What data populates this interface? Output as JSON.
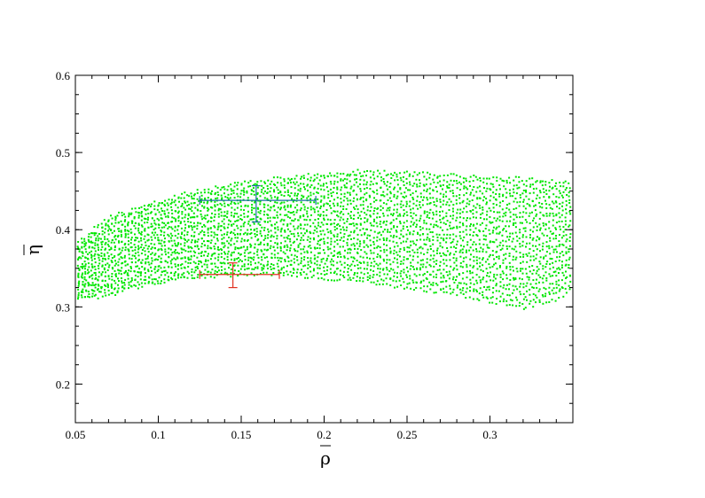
{
  "chart_data": {
    "type": "scatter",
    "title": "",
    "xlabel": "ρ",
    "ylabel": "η",
    "xlabel_overbar": true,
    "ylabel_overbar": true,
    "xlim": [
      0.05,
      0.35
    ],
    "ylim": [
      0.15,
      0.6
    ],
    "xticks": [
      0.05,
      0.1,
      0.15,
      0.2,
      0.25,
      0.3
    ],
    "xtick_labels": [
      "0.05",
      "0.1",
      "0.15",
      "0.2",
      "0.25",
      "0.3"
    ],
    "yticks": [
      0.2,
      0.3,
      0.4,
      0.5,
      0.6
    ],
    "ytick_labels": [
      "0.2",
      "0.3",
      "0.4",
      "0.5",
      "0.6"
    ],
    "grid": false,
    "region": {
      "color": "#00e600",
      "upper_boundary": [
        [
          0.05,
          0.38
        ],
        [
          0.07,
          0.415
        ],
        [
          0.09,
          0.43
        ],
        [
          0.12,
          0.448
        ],
        [
          0.15,
          0.46
        ],
        [
          0.18,
          0.468
        ],
        [
          0.2,
          0.472
        ],
        [
          0.22,
          0.475
        ],
        [
          0.25,
          0.473
        ],
        [
          0.28,
          0.47
        ],
        [
          0.3,
          0.467
        ],
        [
          0.33,
          0.465
        ],
        [
          0.35,
          0.46
        ]
      ],
      "lower_boundary": [
        [
          0.05,
          0.31
        ],
        [
          0.07,
          0.315
        ],
        [
          0.09,
          0.328
        ],
        [
          0.12,
          0.338
        ],
        [
          0.15,
          0.343
        ],
        [
          0.18,
          0.342
        ],
        [
          0.2,
          0.338
        ],
        [
          0.22,
          0.334
        ],
        [
          0.25,
          0.325
        ],
        [
          0.28,
          0.317
        ],
        [
          0.3,
          0.308
        ],
        [
          0.32,
          0.3
        ],
        [
          0.34,
          0.31
        ],
        [
          0.35,
          0.325
        ]
      ]
    },
    "error_points": [
      {
        "color": "#1a6fa0",
        "x": 0.159,
        "y": 0.438,
        "x_err": [
          0.125,
          0.195
        ],
        "y_err": [
          0.41,
          0.457
        ]
      },
      {
        "color": "#e03020",
        "x": 0.145,
        "y": 0.342,
        "x_err": [
          0.125,
          0.173
        ],
        "y_err": [
          0.325,
          0.357
        ]
      }
    ]
  }
}
